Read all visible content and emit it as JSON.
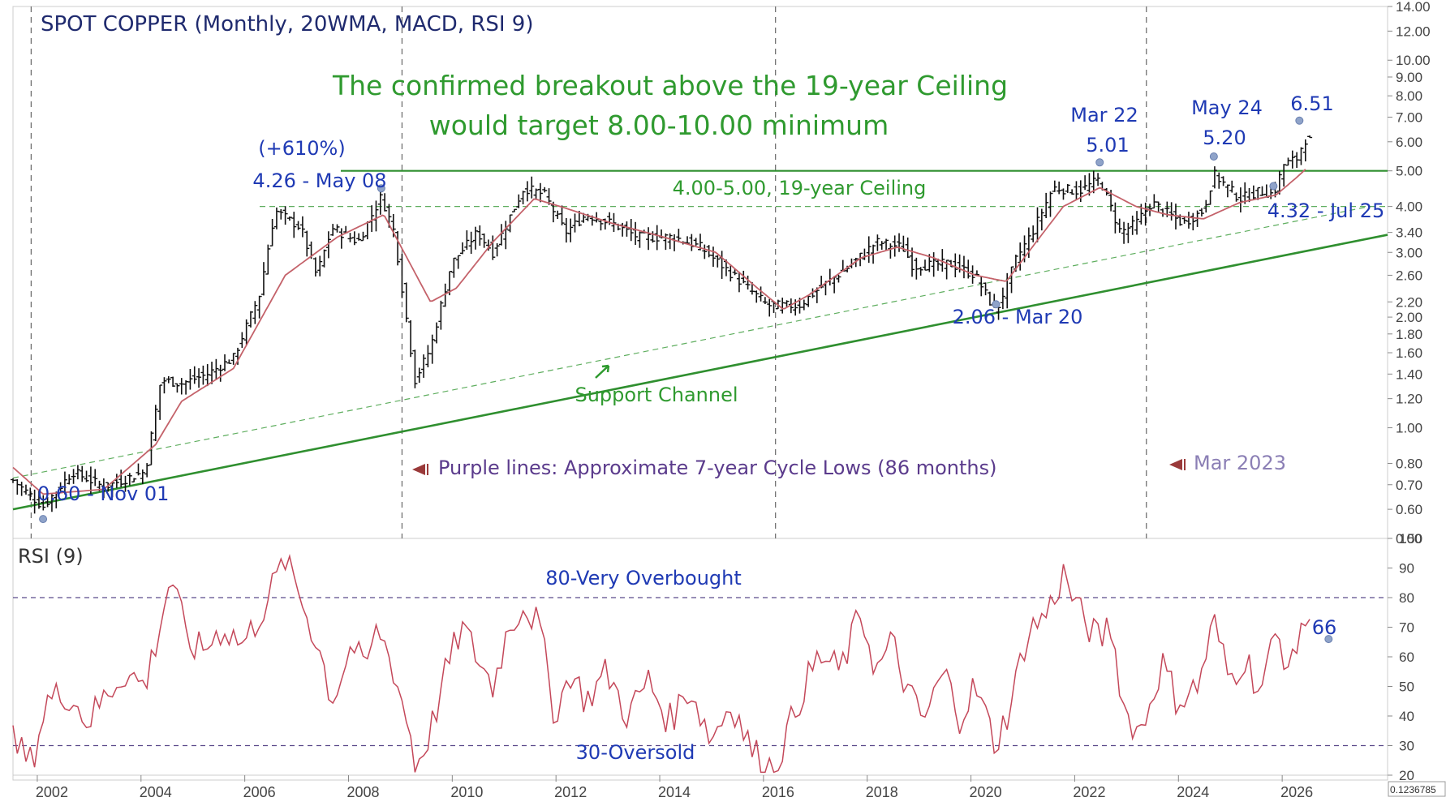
{
  "chart_data": [
    {
      "type": "ohlc",
      "title": "SPOT COPPER (Monthly, 20WMA, MACD, RSI 9)",
      "scale": "log",
      "ylim": [
        0.5,
        14.0
      ],
      "y_ticks": [
        "14.00",
        "12.00",
        "10.00",
        "9.00",
        "8.00",
        "7.00",
        "6.00",
        "5.00",
        "4.00",
        "3.40",
        "3.00",
        "2.60",
        "2.20",
        "2.00",
        "1.80",
        "1.60",
        "1.40",
        "1.20",
        "1.00",
        "0.80",
        "0.70",
        "0.60",
        "0.50"
      ],
      "x_ticks": [
        "2002",
        "2004",
        "2006",
        "2008",
        "2010",
        "2012",
        "2014",
        "2016",
        "2018",
        "2020",
        "2022",
        "2024",
        "2026"
      ],
      "xlim": [
        2001.25,
        2027.75
      ],
      "price_path": [
        [
          2001.25,
          0.72
        ],
        [
          2001.83,
          0.61
        ],
        [
          2002.4,
          0.76
        ],
        [
          2003.0,
          0.69
        ],
        [
          2003.8,
          0.76
        ],
        [
          2004.1,
          1.35
        ],
        [
          2004.5,
          1.32
        ],
        [
          2005.0,
          1.4
        ],
        [
          2005.5,
          1.55
        ],
        [
          2006.0,
          2.3
        ],
        [
          2006.3,
          3.9
        ],
        [
          2006.8,
          3.5
        ],
        [
          2007.1,
          2.6
        ],
        [
          2007.4,
          3.5
        ],
        [
          2007.9,
          3.2
        ],
        [
          2008.35,
          4.26
        ],
        [
          2008.6,
          3.4
        ],
        [
          2008.9,
          1.7
        ],
        [
          2009.0,
          1.35
        ],
        [
          2009.3,
          1.65
        ],
        [
          2009.7,
          2.8
        ],
        [
          2010.2,
          3.4
        ],
        [
          2010.5,
          3.0
        ],
        [
          2011.1,
          4.5
        ],
        [
          2011.5,
          4.3
        ],
        [
          2011.9,
          3.4
        ],
        [
          2012.3,
          3.8
        ],
        [
          2012.8,
          3.6
        ],
        [
          2013.3,
          3.3
        ],
        [
          2014.0,
          3.3
        ],
        [
          2014.5,
          3.1
        ],
        [
          2015.0,
          2.7
        ],
        [
          2015.8,
          2.15
        ],
        [
          2016.4,
          2.15
        ],
        [
          2016.8,
          2.4
        ],
        [
          2017.3,
          2.7
        ],
        [
          2017.9,
          3.2
        ],
        [
          2018.4,
          3.1
        ],
        [
          2018.6,
          2.75
        ],
        [
          2019.3,
          2.8
        ],
        [
          2019.8,
          2.6
        ],
        [
          2020.2,
          2.06
        ],
        [
          2020.6,
          2.9
        ],
        [
          2020.9,
          3.4
        ],
        [
          2021.3,
          4.5
        ],
        [
          2021.8,
          4.4
        ],
        [
          2022.2,
          4.75
        ],
        [
          2022.6,
          3.4
        ],
        [
          2022.9,
          3.6
        ],
        [
          2023.2,
          4.1
        ],
        [
          2023.8,
          3.6
        ],
        [
          2024.2,
          3.9
        ],
        [
          2024.4,
          4.9
        ],
        [
          2024.9,
          4.2
        ],
        [
          2025.3,
          4.4
        ],
        [
          2025.55,
          4.32
        ],
        [
          2025.75,
          5.2
        ],
        [
          2026.0,
          5.4
        ],
        [
          2026.15,
          6.1
        ],
        [
          2026.3,
          6.0
        ]
      ],
      "wma_path": [
        [
          2001.25,
          0.78
        ],
        [
          2001.83,
          0.66
        ],
        [
          2003.0,
          0.68
        ],
        [
          2004.0,
          0.9
        ],
        [
          2004.5,
          1.18
        ],
        [
          2005.5,
          1.45
        ],
        [
          2006.5,
          2.6
        ],
        [
          2007.5,
          3.3
        ],
        [
          2008.4,
          3.8
        ],
        [
          2009.3,
          2.2
        ],
        [
          2009.8,
          2.4
        ],
        [
          2010.5,
          3.2
        ],
        [
          2011.3,
          4.2
        ],
        [
          2011.8,
          4.0
        ],
        [
          2012.8,
          3.6
        ],
        [
          2013.8,
          3.3
        ],
        [
          2014.8,
          3.0
        ],
        [
          2015.6,
          2.4
        ],
        [
          2016.1,
          2.1
        ],
        [
          2016.6,
          2.3
        ],
        [
          2017.6,
          2.9
        ],
        [
          2018.3,
          3.1
        ],
        [
          2019.0,
          2.9
        ],
        [
          2019.8,
          2.6
        ],
        [
          2020.4,
          2.5
        ],
        [
          2020.9,
          3.1
        ],
        [
          2021.5,
          4.0
        ],
        [
          2022.2,
          4.5
        ],
        [
          2022.9,
          4.0
        ],
        [
          2023.5,
          3.8
        ],
        [
          2024.2,
          3.7
        ],
        [
          2024.9,
          4.1
        ],
        [
          2025.6,
          4.3
        ],
        [
          2026.0,
          4.8
        ],
        [
          2026.2,
          5.1
        ]
      ],
      "lines": {
        "ceiling": {
          "value": 5.0,
          "label": "4.00-5.00, 19-year Ceiling"
        },
        "ceiling_low": {
          "value": 4.0
        },
        "support_channel": {
          "label": "Support Channel",
          "from": [
            2001.25,
            0.6
          ],
          "to": [
            2027.75,
            3.35
          ]
        },
        "support_dashed": {
          "from": [
            2001.25,
            0.73
          ],
          "to": [
            2027.4,
            4.0
          ]
        },
        "cycle_lows": [
          2001.6,
          2008.75,
          2015.95,
          2023.1
        ]
      },
      "annotations": {
        "headline_1": "The confirmed breakout above the 19-year Ceiling",
        "headline_2": "would target 8.00-10.00 minimum",
        "pct_gain": "(+610%)",
        "peak_2008": "4.26 - May 08",
        "low_2001": "0.60 - Nov 01",
        "low_2020": "2.06 - Mar 20",
        "peak_2022_date": "Mar 22",
        "peak_2022_value": "5.01",
        "peak_2024_date": "May 24",
        "peak_2024_value": "5.20",
        "peak_2026_value": "6.51",
        "low_2025": "4.32 - Jul 25",
        "cycle_note": "Purple lines: Approximate 7-year Cycle Lows (86 months)",
        "cycle_2023": "Mar 2023"
      },
      "marker_points": [
        [
          2001.83,
          0.6
        ],
        [
          2008.35,
          4.26
        ],
        [
          2020.2,
          2.06
        ],
        [
          2022.2,
          5.01
        ],
        [
          2024.4,
          5.2
        ],
        [
          2025.55,
          4.32
        ],
        [
          2026.05,
          6.51
        ]
      ]
    },
    {
      "type": "line",
      "title": "RSI (9)",
      "ylim": [
        20,
        100
      ],
      "y_ticks": [
        "100",
        "90",
        "80",
        "70",
        "60",
        "50",
        "40",
        "30",
        "20"
      ],
      "levels": {
        "overbought": {
          "value": 80,
          "label": "80-Very Overbought"
        },
        "oversold": {
          "value": 30,
          "label": "30-Oversold"
        }
      },
      "last_value": "66",
      "rsi_path": [
        [
          2001.25,
          31
        ],
        [
          2001.6,
          24
        ],
        [
          2001.9,
          45
        ],
        [
          2002.3,
          48
        ],
        [
          2002.7,
          38
        ],
        [
          2003.0,
          46
        ],
        [
          2003.4,
          55
        ],
        [
          2003.8,
          50
        ],
        [
          2004.1,
          72
        ],
        [
          2004.3,
          88
        ],
        [
          2004.6,
          65
        ],
        [
          2004.9,
          62
        ],
        [
          2005.3,
          70
        ],
        [
          2005.7,
          64
        ],
        [
          2006.0,
          74
        ],
        [
          2006.3,
          85
        ],
        [
          2006.5,
          93
        ],
        [
          2006.8,
          80
        ],
        [
          2007.2,
          60
        ],
        [
          2007.4,
          45
        ],
        [
          2007.8,
          65
        ],
        [
          2008.0,
          55
        ],
        [
          2008.3,
          70
        ],
        [
          2008.6,
          55
        ],
        [
          2008.9,
          35
        ],
        [
          2009.0,
          22
        ],
        [
          2009.3,
          35
        ],
        [
          2009.6,
          55
        ],
        [
          2009.9,
          70
        ],
        [
          2010.2,
          60
        ],
        [
          2010.5,
          50
        ],
        [
          2010.8,
          70
        ],
        [
          2011.1,
          78
        ],
        [
          2011.4,
          70
        ],
        [
          2011.7,
          40
        ],
        [
          2012.0,
          55
        ],
        [
          2012.3,
          45
        ],
        [
          2012.7,
          55
        ],
        [
          2013.1,
          40
        ],
        [
          2013.5,
          52
        ],
        [
          2013.9,
          38
        ],
        [
          2014.3,
          50
        ],
        [
          2014.7,
          32
        ],
        [
          2015.1,
          45
        ],
        [
          2015.5,
          28
        ],
        [
          2015.9,
          22
        ],
        [
          2016.2,
          35
        ],
        [
          2016.5,
          50
        ],
        [
          2016.8,
          60
        ],
        [
          2017.2,
          55
        ],
        [
          2017.6,
          75
        ],
        [
          2017.9,
          55
        ],
        [
          2018.2,
          65
        ],
        [
          2018.5,
          48
        ],
        [
          2018.8,
          38
        ],
        [
          2019.2,
          55
        ],
        [
          2019.5,
          40
        ],
        [
          2019.8,
          50
        ],
        [
          2020.2,
          30
        ],
        [
          2020.5,
          45
        ],
        [
          2020.8,
          68
        ],
        [
          2021.2,
          75
        ],
        [
          2021.5,
          88
        ],
        [
          2021.8,
          75
        ],
        [
          2022.2,
          65
        ],
        [
          2022.4,
          72
        ],
        [
          2022.7,
          40
        ],
        [
          2023.0,
          35
        ],
        [
          2023.4,
          58
        ],
        [
          2023.7,
          45
        ],
        [
          2024.1,
          50
        ],
        [
          2024.4,
          72
        ],
        [
          2024.7,
          52
        ],
        [
          2025.0,
          60
        ],
        [
          2025.3,
          48
        ],
        [
          2025.6,
          68
        ],
        [
          2025.9,
          55
        ],
        [
          2026.1,
          74
        ],
        [
          2026.3,
          66
        ]
      ]
    }
  ],
  "footer": {
    "corner_value": "0.1236785"
  }
}
